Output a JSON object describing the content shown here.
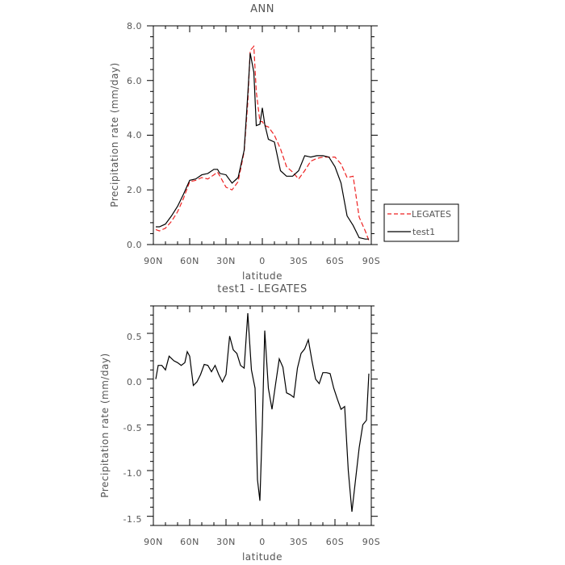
{
  "colors": {
    "legates": "#ee2222",
    "test1": "#000000"
  },
  "chart_data": [
    {
      "type": "line",
      "title": "ANN",
      "xlabel": "latitude",
      "ylabel": "Precipitation rate (mm/day)",
      "xlim": [
        90,
        -90
      ],
      "ylim": [
        0,
        8
      ],
      "x_ticks": [
        90,
        60,
        30,
        0,
        -30,
        -60,
        -90
      ],
      "x_tick_labels": [
        "90N",
        "60N",
        "30N",
        "0",
        "30S",
        "60S",
        "90S"
      ],
      "y_ticks": [
        0,
        2,
        4,
        6,
        8
      ],
      "y_tick_labels": [
        "0.0",
        "2.0",
        "4.0",
        "6.0",
        "8.0"
      ],
      "legend_position": "right",
      "legend": [
        "LEGATES",
        "test1"
      ],
      "series": [
        {
          "name": "LEGATES",
          "style": "dashed",
          "color": "#ee2222",
          "x": [
            88,
            85,
            80,
            75,
            70,
            65,
            60,
            55,
            50,
            45,
            40,
            37,
            35,
            30,
            25,
            20,
            15,
            12,
            10,
            7,
            5,
            2,
            0,
            -2,
            -5,
            -10,
            -15,
            -20,
            -25,
            -30,
            -35,
            -40,
            -45,
            -50,
            -55,
            -60,
            -65,
            -70,
            -75,
            -80,
            -85,
            -88
          ],
          "y": [
            0.55,
            0.5,
            0.6,
            0.85,
            1.2,
            1.7,
            2.3,
            2.35,
            2.45,
            2.4,
            2.55,
            2.65,
            2.5,
            2.1,
            2.0,
            2.3,
            3.4,
            5.2,
            7.1,
            7.25,
            5.6,
            4.5,
            4.5,
            4.35,
            4.3,
            4.0,
            3.5,
            2.85,
            2.65,
            2.4,
            2.7,
            3.05,
            3.15,
            3.2,
            3.2,
            3.2,
            2.95,
            2.45,
            2.5,
            1.0,
            0.5,
            0.15
          ]
        },
        {
          "name": "test1",
          "style": "solid",
          "color": "#000000",
          "x": [
            88,
            85,
            80,
            75,
            70,
            65,
            60,
            55,
            50,
            45,
            40,
            37,
            35,
            30,
            25,
            20,
            15,
            12,
            10,
            7,
            5,
            2,
            0,
            -2,
            -5,
            -10,
            -15,
            -20,
            -25,
            -30,
            -35,
            -40,
            -45,
            -50,
            -55,
            -60,
            -65,
            -70,
            -75,
            -80,
            -85,
            -88
          ],
          "y": [
            0.65,
            0.65,
            0.75,
            1.05,
            1.4,
            1.85,
            2.35,
            2.4,
            2.55,
            2.6,
            2.75,
            2.75,
            2.6,
            2.55,
            2.25,
            2.45,
            3.45,
            5.5,
            7.0,
            6.3,
            4.35,
            4.4,
            5.0,
            4.4,
            3.85,
            3.75,
            2.7,
            2.5,
            2.5,
            2.7,
            3.25,
            3.2,
            3.25,
            3.25,
            3.2,
            2.85,
            2.25,
            1.05,
            0.7,
            0.25,
            0.2,
            0.2
          ]
        }
      ]
    },
    {
      "type": "line",
      "title": "test1 - LEGATES",
      "xlabel": "latitude",
      "ylabel": "Precipitation rate (mm/day)",
      "xlim": [
        90,
        -90
      ],
      "ylim": [
        -1.6,
        0.8
      ],
      "x_ticks": [
        90,
        60,
        30,
        0,
        -30,
        -60,
        -90
      ],
      "x_tick_labels": [
        "90N",
        "60N",
        "30N",
        "0",
        "30S",
        "60S",
        "90S"
      ],
      "y_ticks": [
        0.5,
        0.0,
        -0.5,
        -1.0,
        -1.5
      ],
      "y_tick_labels": [
        "0.5",
        "0.0",
        "-0.5",
        "-1.0",
        "-1.5"
      ],
      "series": [
        {
          "style": "solid",
          "color": "#000000",
          "x": [
            88,
            86,
            83,
            80,
            77,
            73,
            70,
            67,
            64,
            62,
            60,
            57,
            54,
            51,
            48,
            45,
            42,
            39,
            36,
            33,
            30,
            27,
            24,
            21,
            18,
            15,
            12,
            9,
            6,
            4,
            2,
            0,
            -2,
            -5,
            -8,
            -11,
            -14,
            -17,
            -20,
            -23,
            -26,
            -29,
            -32,
            -35,
            -38,
            -41,
            -44,
            -47,
            -50,
            -53,
            -56,
            -59,
            -62,
            -65,
            -68,
            -71,
            -74,
            -77,
            -80,
            -83,
            -86,
            -88
          ],
          "y": [
            0.0,
            0.15,
            0.15,
            0.1,
            0.25,
            0.2,
            0.18,
            0.15,
            0.18,
            0.3,
            0.25,
            -0.07,
            -0.03,
            0.05,
            0.16,
            0.15,
            0.08,
            0.15,
            0.05,
            -0.03,
            0.05,
            0.47,
            0.32,
            0.28,
            0.15,
            0.12,
            0.72,
            0.1,
            -0.1,
            -1.1,
            -1.33,
            -0.5,
            0.53,
            -0.1,
            -0.33,
            -0.05,
            0.22,
            0.13,
            -0.15,
            -0.17,
            -0.2,
            0.12,
            0.28,
            0.33,
            0.43,
            0.2,
            0.0,
            -0.05,
            0.07,
            0.07,
            0.06,
            -0.1,
            -0.22,
            -0.33,
            -0.3,
            -1.0,
            -1.45,
            -1.1,
            -0.75,
            -0.5,
            -0.45,
            0.06
          ]
        }
      ]
    }
  ]
}
